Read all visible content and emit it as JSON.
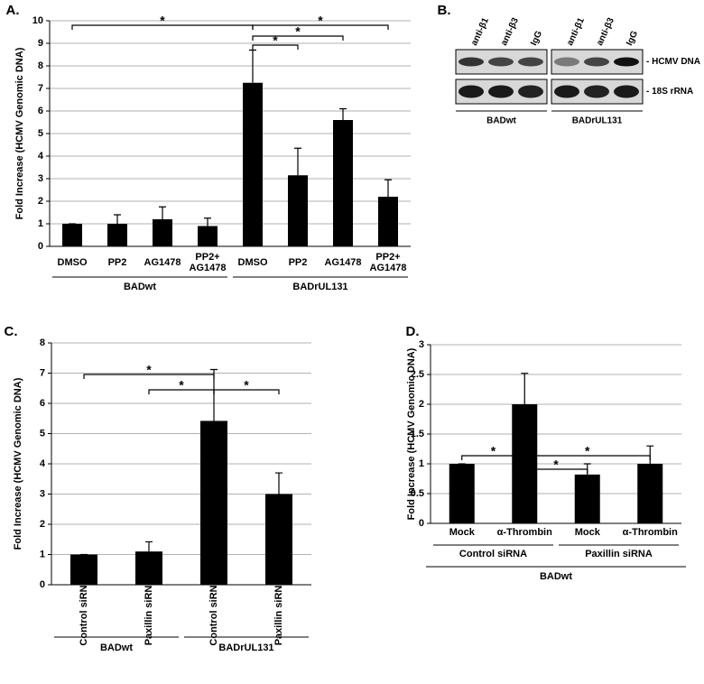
{
  "chart_data": [
    {
      "type": "bar",
      "panel_label": "A.",
      "y_label": "Fold Increase (HCMV Genomic DNA)",
      "categories": [
        "DMSO",
        "PP2",
        "AG1478",
        "PP2+\nAG1478",
        "DMSO",
        "PP2",
        "AG1478",
        "PP2+\nAG1478"
      ],
      "values": [
        1,
        1,
        1.2,
        0.9,
        7.25,
        3.15,
        5.6,
        2.2
      ],
      "errors": [
        0,
        0.4,
        0.55,
        0.35,
        1.45,
        1.2,
        0.5,
        0.75
      ],
      "color": "#000000",
      "ylim": [
        0,
        10
      ],
      "yticks": [
        0,
        1,
        2,
        3,
        4,
        5,
        6,
        7,
        8,
        9,
        10
      ],
      "grid": true,
      "groups": [
        {
          "label": "BADwt",
          "from": 0,
          "to": 3
        },
        {
          "label": "BADrUL131",
          "from": 4,
          "to": 7
        }
      ],
      "significance": [
        {
          "from": 0,
          "to": 4,
          "label": "*"
        },
        {
          "from": 4,
          "to": 7,
          "label": "*"
        },
        {
          "from": 4,
          "to": 5,
          "label": "*"
        },
        {
          "from": 4,
          "to": 6,
          "label": "*"
        }
      ]
    },
    {
      "type": "bar",
      "panel_label": "C.",
      "y_label": "Fold Increase (HCMV Genomic DNA)",
      "categories": [
        "Control siRNA",
        "Paxillin siRNA",
        "Control siRNA",
        "Paxillin siRNA"
      ],
      "values": [
        1,
        1.1,
        5.42,
        3.0
      ],
      "errors": [
        0,
        0.32,
        1.7,
        0.7
      ],
      "color": "#000000",
      "ylim": [
        0,
        8
      ],
      "yticks": [
        0,
        1,
        2,
        3,
        4,
        5,
        6,
        7,
        8
      ],
      "grid": true,
      "groups": [
        {
          "label": "BADwt",
          "from": 0,
          "to": 1
        },
        {
          "label": "BADrUL131",
          "from": 2,
          "to": 3
        }
      ],
      "significance": [
        {
          "from": 0,
          "to": 2,
          "label": "*"
        },
        {
          "from": 1,
          "to": 2,
          "label": "*"
        },
        {
          "from": 2,
          "to": 3,
          "label": "*"
        }
      ]
    },
    {
      "type": "bar",
      "panel_label": "D.",
      "y_label": "Fold Increase (HCMV Genomic DNA)",
      "categories": [
        "Mock",
        "α-Thrombin",
        "Mock",
        "α-Thrombin"
      ],
      "values": [
        1,
        2,
        0.82,
        1.0
      ],
      "errors": [
        0,
        0.52,
        0.18,
        0.3
      ],
      "color": "#000000",
      "ylim": [
        0,
        3
      ],
      "yticks": [
        0,
        0.5,
        1,
        1.5,
        2,
        2.5,
        3
      ],
      "grid": true,
      "groups": [
        {
          "label": "Control siRNA",
          "from": 0,
          "to": 1
        },
        {
          "label": "Paxillin siRNA",
          "from": 2,
          "to": 3
        }
      ],
      "outer_group": {
        "label": "BADwt",
        "from": 0,
        "to": 3
      },
      "significance": [
        {
          "from": 0,
          "to": 1,
          "label": "*"
        },
        {
          "from": 1,
          "to": 3,
          "label": "*"
        },
        {
          "from": 1,
          "to": 2,
          "label": "*"
        }
      ]
    }
  ],
  "blot": {
    "panel_label": "B.",
    "lanes": [
      "anti-β1",
      "anti-β3",
      "IgG",
      "anti-β1",
      "anti-β3",
      "IgG"
    ],
    "bands": [
      "- HCMV DNA",
      "- 18S rRNA"
    ],
    "groups": [
      "BADwt",
      "BADrUL131"
    ]
  }
}
